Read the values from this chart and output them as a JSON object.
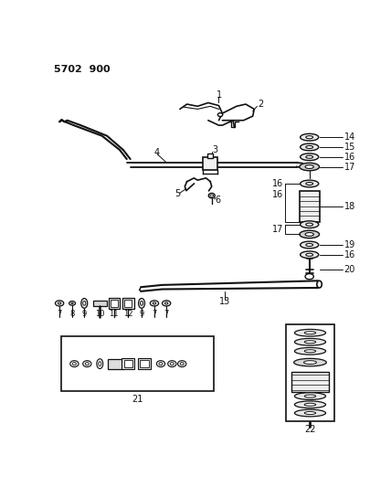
{
  "title": "5702  900",
  "bg_color": "#ffffff",
  "lc": "#111111",
  "tc": "#111111",
  "fig_width": 4.28,
  "fig_height": 5.33,
  "dpi": 100
}
